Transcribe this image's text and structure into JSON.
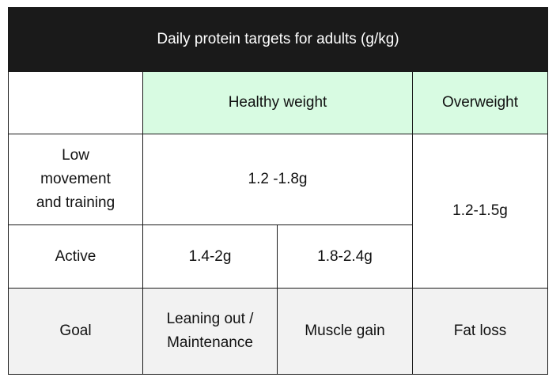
{
  "title": "Daily protein targets for adults (g/kg)",
  "headers": {
    "corner": "",
    "healthy_weight": "Healthy weight",
    "overweight": "Overweight"
  },
  "rows": {
    "low_movement": {
      "label": "Low movement and training",
      "healthy_value": "1.2 -1.8g"
    },
    "active": {
      "label": "Active",
      "leaning_value": "1.4-2g",
      "muscle_value": "1.8-2.4g"
    },
    "overweight_value": "1.2-1.5g",
    "goal": {
      "label": "Goal",
      "leaning": "Leaning out / Maintenance",
      "muscle": "Muscle gain",
      "fat": "Fat loss"
    }
  },
  "colors": {
    "title_bg": "#1a1a1a",
    "header_green": "#d8fbe2",
    "goal_row_bg": "#f2f2f2",
    "border": "#1a1a1a"
  }
}
